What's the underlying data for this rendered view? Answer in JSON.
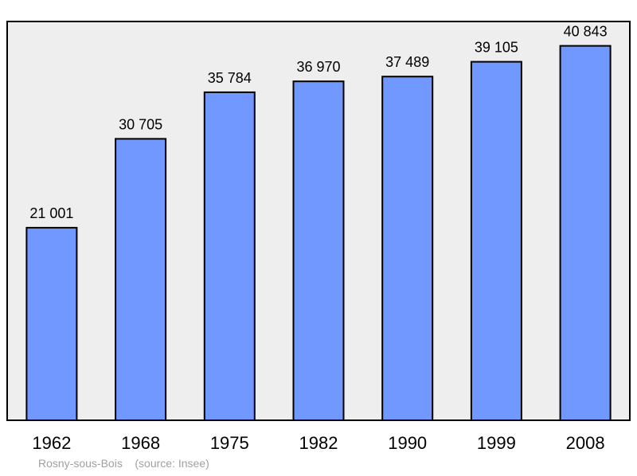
{
  "chart_data": {
    "type": "bar",
    "categories": [
      "1962",
      "1968",
      "1975",
      "1982",
      "1990",
      "1999",
      "2008"
    ],
    "values": [
      21001,
      30705,
      35784,
      36970,
      37489,
      39105,
      40843
    ],
    "value_labels": [
      "21 001",
      "30 705",
      "35 784",
      "36 970",
      "37 489",
      "39 105",
      "40 843"
    ],
    "title": "",
    "xlabel": "",
    "ylabel": "",
    "ylim": [
      0,
      43500
    ],
    "grid": false,
    "bar_color": "#7098ff",
    "background_color": "#eeeeee"
  },
  "caption": {
    "place": "Rosny-sous-Bois",
    "source": "(source: Insee)"
  }
}
